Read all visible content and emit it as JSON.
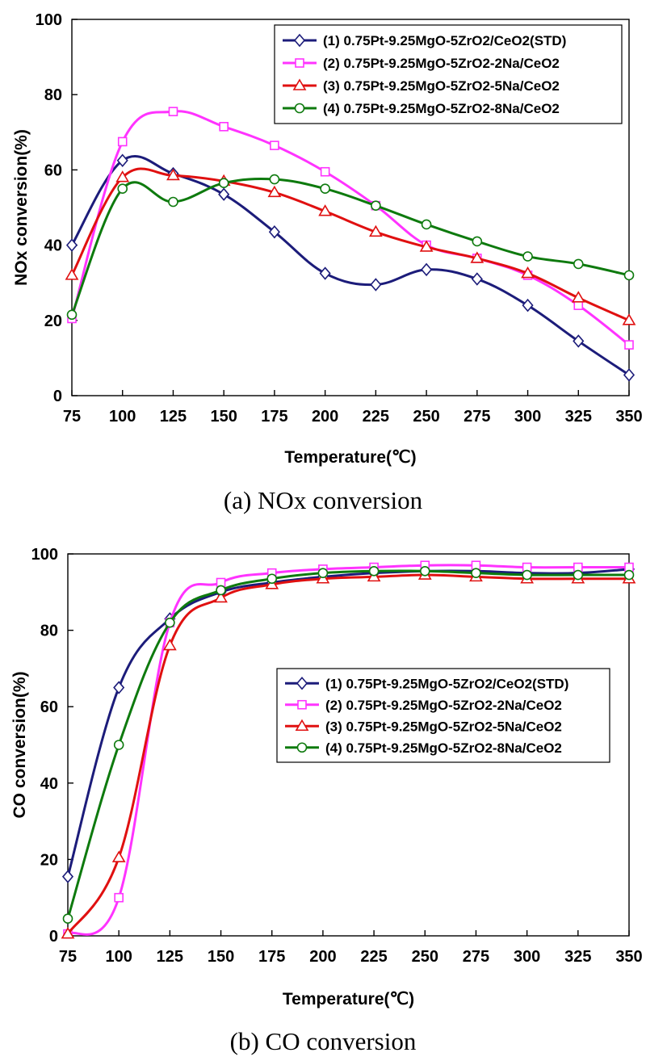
{
  "chart_data": [
    {
      "type": "line",
      "caption": "(a)  NOx  conversion",
      "xlabel": "Temperature(℃)",
      "ylabel": "NOx conversion(%)",
      "x": [
        75,
        100,
        125,
        150,
        175,
        200,
        225,
        250,
        275,
        300,
        325,
        350
      ],
      "xlim": [
        75,
        350
      ],
      "ylim": [
        0,
        100
      ],
      "yticks": [
        0,
        20,
        40,
        60,
        80,
        100
      ],
      "grid": false,
      "legend_position": "top-right",
      "series": [
        {
          "name": "(1) 0.75Pt-9.25MgO-5ZrO2/CeO2(STD)",
          "color": "#1c1c7a",
          "marker": "diamond",
          "values": [
            40,
            62.5,
            59,
            53.5,
            43.5,
            32.5,
            29.5,
            33.5,
            31,
            24,
            14.5,
            5.5
          ]
        },
        {
          "name": "(2) 0.75Pt-9.25MgO-5ZrO2-2Na/CeO2",
          "color": "#ff33ff",
          "marker": "square",
          "values": [
            20.5,
            67.5,
            75.5,
            71.5,
            66.5,
            59.5,
            50.5,
            40,
            36.5,
            32,
            24,
            13.5
          ]
        },
        {
          "name": "(3) 0.75Pt-9.25MgO-5ZrO2-5Na/CeO2",
          "color": "#e01010",
          "marker": "triangle",
          "values": [
            32,
            58,
            58.5,
            57,
            54,
            49,
            43.5,
            39.5,
            36.5,
            32.5,
            26,
            20
          ]
        },
        {
          "name": "(4) 0.75Pt-9.25MgO-5ZrO2-8Na/CeO2",
          "color": "#0e7a0e",
          "marker": "circle",
          "values": [
            21.5,
            55,
            51.5,
            56.5,
            57.5,
            55,
            50.5,
            45.5,
            41,
            37,
            35,
            32
          ]
        }
      ]
    },
    {
      "type": "line",
      "caption": "(b)  CO  conversion",
      "xlabel": "Temperature(℃)",
      "ylabel": "CO conversion(%)",
      "x": [
        75,
        100,
        125,
        150,
        175,
        200,
        225,
        250,
        275,
        300,
        325,
        350
      ],
      "xlim": [
        75,
        350
      ],
      "ylim": [
        0,
        100
      ],
      "yticks": [
        0,
        20,
        40,
        60,
        80,
        100
      ],
      "grid": false,
      "legend_position": "bottom-right",
      "series": [
        {
          "name": "(1) 0.75Pt-9.25MgO-5ZrO2/CeO2(STD)",
          "color": "#1c1c7a",
          "marker": "diamond",
          "values": [
            15.5,
            65,
            83,
            90,
            92.5,
            94,
            95,
            95.5,
            95.5,
            95,
            95,
            96
          ]
        },
        {
          "name": "(2) 0.75Pt-9.25MgO-5ZrO2-2Na/CeO2",
          "color": "#ff33ff",
          "marker": "square",
          "values": [
            0.5,
            10,
            82,
            92.5,
            95,
            96,
            96.5,
            97,
            97,
            96.5,
            96.5,
            96.5
          ]
        },
        {
          "name": "(3) 0.75Pt-9.25MgO-5ZrO2-5Na/CeO2",
          "color": "#e01010",
          "marker": "triangle",
          "values": [
            0.5,
            20.5,
            76,
            88.5,
            92,
            93.5,
            94,
            94.5,
            94,
            93.5,
            93.5,
            93.5
          ]
        },
        {
          "name": "(4) 0.75Pt-9.25MgO-5ZrO2-8Na/CeO2",
          "color": "#0e7a0e",
          "marker": "circle",
          "values": [
            4.5,
            50,
            82,
            90.5,
            93.5,
            95,
            95.5,
            95.5,
            95,
            94.5,
            94.5,
            94.5
          ]
        }
      ]
    }
  ]
}
